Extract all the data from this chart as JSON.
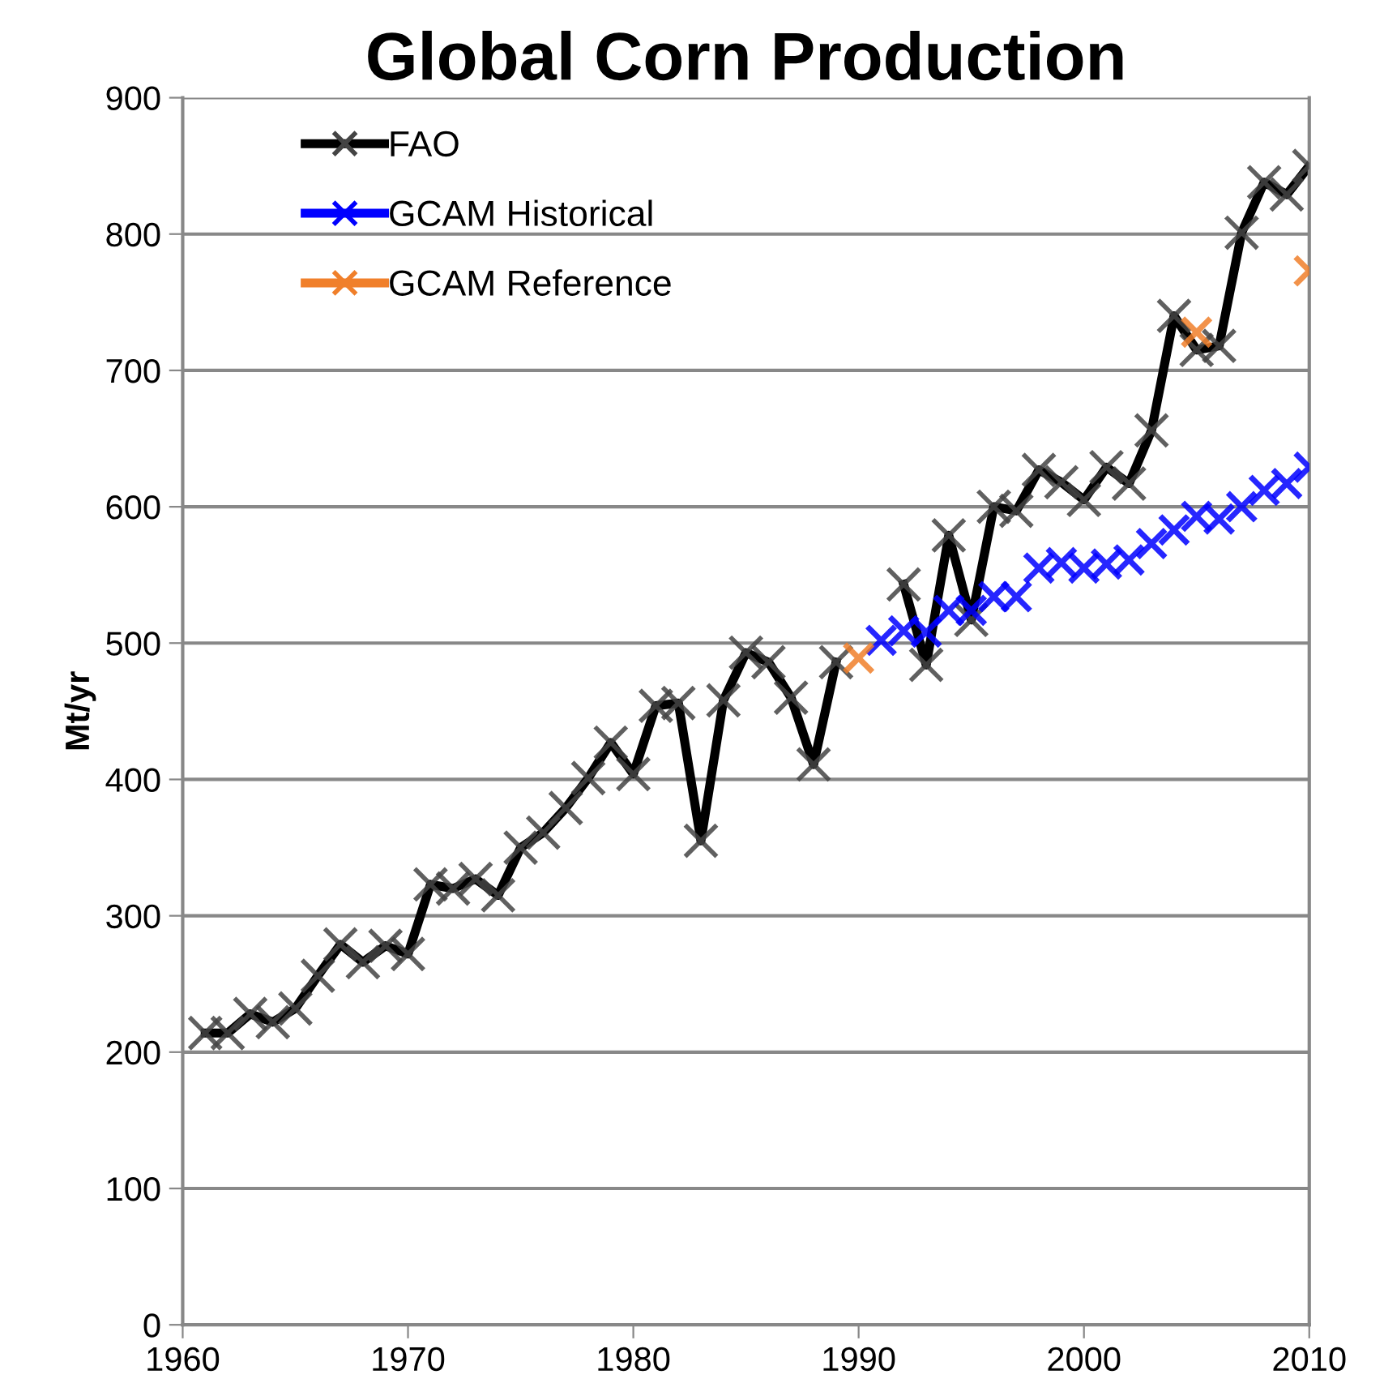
{
  "chart_data": {
    "type": "line",
    "title": "Global Corn Production",
    "ylabel": "Mt/yr",
    "xlim": [
      1960,
      2010
    ],
    "xticks": [
      1960,
      1970,
      1980,
      1990,
      2000,
      2010
    ],
    "ylim": [
      0,
      900
    ],
    "yticks": [
      0,
      100,
      200,
      300,
      400,
      500,
      600,
      700,
      800,
      900
    ],
    "grid": "y",
    "legend": "top left",
    "series": [
      {
        "name": "FAO",
        "color": "#000000",
        "marker": "cross",
        "line_style": "solid",
        "x": [
          1961,
          1962,
          1963,
          1964,
          1965,
          1966,
          1967,
          1968,
          1969,
          1970,
          1971,
          1972,
          1973,
          1974,
          1975,
          1976,
          1977,
          1978,
          1979,
          1980,
          1981,
          1982,
          1983,
          1984,
          1985,
          1986,
          1987,
          1988,
          1989,
          1990,
          1991,
          1992,
          1993,
          1994,
          1995,
          1996,
          1997,
          1998,
          1999,
          2000,
          2001,
          2002,
          2003,
          2004,
          2005,
          2006,
          2007,
          2008,
          2009,
          2010
        ],
        "values": [
          214,
          214,
          228,
          222,
          232,
          256,
          279,
          266,
          278,
          272,
          323,
          320,
          327,
          315,
          350,
          361,
          379,
          401,
          427,
          404,
          454,
          456,
          355,
          458,
          493,
          486,
          460,
          411,
          486,
          null,
          null,
          543,
          484,
          579,
          517,
          600,
          597,
          627,
          618,
          605,
          629,
          617,
          656,
          740,
          715,
          718,
          801,
          838,
          829,
          850
        ]
      },
      {
        "name": "GCAM Historical",
        "color": "#0000ff",
        "type": "scatter",
        "marker": "cross",
        "x": [
          1991,
          1992,
          1993,
          1994,
          1995,
          1996,
          1997,
          1998,
          1999,
          2000,
          2001,
          2002,
          2003,
          2004,
          2005,
          2006,
          2007,
          2008,
          2009,
          2010
        ],
        "values": [
          502,
          509,
          508,
          524,
          524,
          534,
          534,
          555,
          559,
          555,
          558,
          561,
          573,
          583,
          593,
          591,
          600,
          612,
          617,
          629
        ]
      },
      {
        "name": "GCAM Reference",
        "color": "#f07f2a",
        "type": "scatter",
        "marker": "cross",
        "x": [
          1990,
          2005,
          2010
        ],
        "values": [
          489,
          728,
          773
        ]
      }
    ]
  }
}
